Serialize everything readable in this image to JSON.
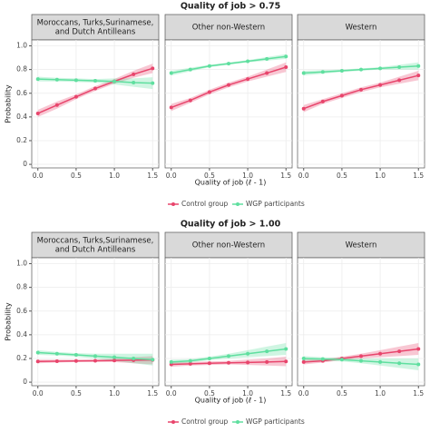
{
  "chart_data": [
    {
      "type": "line",
      "title": "Quality of job > 0.75",
      "y_label": "Probability",
      "x_label": "Quality of job (ℓ - 1)",
      "x": [
        0,
        0.25,
        0.5,
        0.75,
        1,
        1.25,
        1.5
      ],
      "xlim": [
        -0.08,
        1.58
      ],
      "xticks": [
        {
          "value": 0,
          "label": "0.0"
        },
        {
          "value": 0.5,
          "label": "0.5"
        },
        {
          "value": 1,
          "label": "1.0"
        },
        {
          "value": 1.5,
          "label": "1.5"
        }
      ],
      "ylim": [
        -0.03,
        1.05
      ],
      "yticks": [
        0,
        0.2,
        0.4,
        0.6,
        0.8,
        {
          "value": 1,
          "label": "1.0"
        }
      ],
      "grid": true,
      "panels": [
        {
          "title": [
            "Moroccans, Turks,Surinamese,",
            "and Dutch Antilleans"
          ],
          "series": [
            {
              "name": "Control group",
              "color": "#e8456c",
              "values": [
                0.43,
                0.5,
                0.57,
                0.64,
                0.7,
                0.76,
                0.81
              ],
              "lower": [
                0.4,
                0.47,
                0.55,
                0.62,
                0.68,
                0.73,
                0.77
              ],
              "upper": [
                0.46,
                0.53,
                0.59,
                0.66,
                0.72,
                0.79,
                0.85
              ]
            },
            {
              "name": "WGP participants",
              "color": "#5fdf9f",
              "values": [
                0.72,
                0.715,
                0.71,
                0.705,
                0.7,
                0.69,
                0.685
              ],
              "lower": [
                0.7,
                0.7,
                0.695,
                0.69,
                0.675,
                0.655,
                0.635
              ],
              "upper": [
                0.74,
                0.73,
                0.725,
                0.72,
                0.725,
                0.725,
                0.735
              ]
            }
          ]
        },
        {
          "title": [
            "Other non-Western"
          ],
          "series": [
            {
              "name": "Control group",
              "color": "#e8456c",
              "values": [
                0.48,
                0.54,
                0.61,
                0.67,
                0.72,
                0.77,
                0.82
              ],
              "lower": [
                0.45,
                0.52,
                0.59,
                0.65,
                0.7,
                0.74,
                0.78
              ],
              "upper": [
                0.51,
                0.56,
                0.63,
                0.69,
                0.74,
                0.8,
                0.86
              ]
            },
            {
              "name": "WGP participants",
              "color": "#5fdf9f",
              "values": [
                0.77,
                0.8,
                0.83,
                0.85,
                0.87,
                0.89,
                0.91
              ],
              "lower": [
                0.75,
                0.785,
                0.82,
                0.84,
                0.86,
                0.875,
                0.89
              ],
              "upper": [
                0.79,
                0.815,
                0.84,
                0.86,
                0.88,
                0.905,
                0.93
              ]
            }
          ]
        },
        {
          "title": [
            "Western"
          ],
          "series": [
            {
              "name": "Control group",
              "color": "#e8456c",
              "values": [
                0.47,
                0.53,
                0.58,
                0.63,
                0.67,
                0.71,
                0.75
              ],
              "lower": [
                0.44,
                0.51,
                0.56,
                0.61,
                0.65,
                0.68,
                0.71
              ],
              "upper": [
                0.5,
                0.55,
                0.6,
                0.65,
                0.69,
                0.74,
                0.79
              ]
            },
            {
              "name": "WGP participants",
              "color": "#5fdf9f",
              "values": [
                0.77,
                0.78,
                0.79,
                0.8,
                0.81,
                0.82,
                0.83
              ],
              "lower": [
                0.75,
                0.765,
                0.78,
                0.79,
                0.8,
                0.8,
                0.8
              ],
              "upper": [
                0.79,
                0.795,
                0.8,
                0.81,
                0.82,
                0.84,
                0.86
              ]
            }
          ]
        }
      ]
    },
    {
      "type": "line",
      "title": "Quality of job > 1.00",
      "y_label": "Probability",
      "x_label": "Quality of job (ℓ - 1)",
      "x": [
        0,
        0.25,
        0.5,
        0.75,
        1,
        1.25,
        1.5
      ],
      "xlim": [
        -0.08,
        1.58
      ],
      "xticks": [
        {
          "value": 0,
          "label": "0.0"
        },
        {
          "value": 0.5,
          "label": "0.5"
        },
        {
          "value": 1,
          "label": "1.0"
        },
        {
          "value": 1.5,
          "label": "1.5"
        }
      ],
      "ylim": [
        -0.03,
        1.05
      ],
      "yticks": [
        0,
        0.2,
        0.4,
        0.6,
        0.8,
        {
          "value": 1,
          "label": "1.0"
        }
      ],
      "grid": true,
      "panels": [
        {
          "title": [
            "Moroccans, Turks,Surinamese,",
            "and Dutch Antilleans"
          ],
          "series": [
            {
              "name": "Control group",
              "color": "#e8456c",
              "values": [
                0.175,
                0.177,
                0.179,
                0.181,
                0.183,
                0.185,
                0.187
              ],
              "lower": [
                0.16,
                0.165,
                0.17,
                0.17,
                0.17,
                0.16,
                0.15
              ],
              "upper": [
                0.19,
                0.19,
                0.19,
                0.19,
                0.2,
                0.21,
                0.22
              ]
            },
            {
              "name": "WGP participants",
              "color": "#5fdf9f",
              "values": [
                0.25,
                0.24,
                0.23,
                0.22,
                0.21,
                0.2,
                0.19
              ],
              "lower": [
                0.23,
                0.225,
                0.215,
                0.2,
                0.18,
                0.16,
                0.14
              ],
              "upper": [
                0.27,
                0.255,
                0.245,
                0.24,
                0.24,
                0.24,
                0.24
              ]
            }
          ]
        },
        {
          "title": [
            "Other non-Western"
          ],
          "series": [
            {
              "name": "Control group",
              "color": "#e8456c",
              "values": [
                0.15,
                0.155,
                0.16,
                0.163,
                0.166,
                0.17,
                0.175
              ],
              "lower": [
                0.13,
                0.14,
                0.145,
                0.15,
                0.145,
                0.14,
                0.135
              ],
              "upper": [
                0.17,
                0.17,
                0.175,
                0.18,
                0.19,
                0.2,
                0.215
              ]
            },
            {
              "name": "WGP participants",
              "color": "#5fdf9f",
              "values": [
                0.17,
                0.18,
                0.2,
                0.22,
                0.24,
                0.26,
                0.28
              ],
              "lower": [
                0.15,
                0.165,
                0.185,
                0.2,
                0.21,
                0.22,
                0.23
              ],
              "upper": [
                0.19,
                0.195,
                0.215,
                0.24,
                0.27,
                0.3,
                0.33
              ]
            }
          ]
        },
        {
          "title": [
            "Western"
          ],
          "series": [
            {
              "name": "Control group",
              "color": "#e8456c",
              "values": [
                0.17,
                0.18,
                0.2,
                0.22,
                0.24,
                0.26,
                0.28
              ],
              "lower": [
                0.15,
                0.165,
                0.185,
                0.2,
                0.21,
                0.22,
                0.23
              ],
              "upper": [
                0.19,
                0.195,
                0.215,
                0.24,
                0.27,
                0.3,
                0.33
              ]
            },
            {
              "name": "WGP participants",
              "color": "#5fdf9f",
              "values": [
                0.2,
                0.195,
                0.19,
                0.18,
                0.17,
                0.16,
                0.15
              ],
              "lower": [
                0.18,
                0.18,
                0.175,
                0.16,
                0.14,
                0.12,
                0.1
              ],
              "upper": [
                0.22,
                0.21,
                0.205,
                0.2,
                0.2,
                0.2,
                0.2
              ]
            }
          ]
        }
      ]
    }
  ]
}
